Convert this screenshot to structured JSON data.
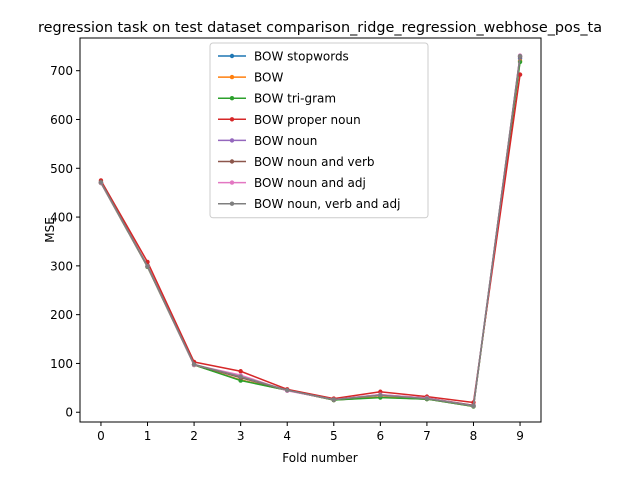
{
  "chart_data": {
    "type": "line",
    "title": "regression task on test dataset comparison_ridge_regression_webhose_pos_ta",
    "xlabel": "Fold number",
    "ylabel": "MSE",
    "x": [
      0,
      1,
      2,
      3,
      4,
      5,
      6,
      7,
      8,
      9
    ],
    "xlim": [
      -0.45,
      9.45
    ],
    "ylim": [
      -20,
      767
    ],
    "yticks": [
      0,
      100,
      200,
      300,
      400,
      500,
      600,
      700
    ],
    "legend_position": "upper center",
    "series": [
      {
        "name": "BOW stopwords",
        "color": "#1f77b4",
        "values": [
          470,
          298,
          97,
          66,
          45,
          25,
          31,
          27,
          12,
          725
        ]
      },
      {
        "name": "BOW",
        "color": "#ff7f0e",
        "values": [
          470,
          298,
          97,
          66,
          45,
          25,
          31,
          27,
          12,
          720
        ]
      },
      {
        "name": "BOW tri-gram",
        "color": "#2ca02c",
        "values": [
          470,
          298,
          97,
          65,
          45,
          25,
          30,
          27,
          12,
          718
        ]
      },
      {
        "name": "BOW proper noun",
        "color": "#d62728",
        "values": [
          475,
          308,
          103,
          84,
          47,
          28,
          42,
          32,
          20,
          692
        ]
      },
      {
        "name": "BOW noun",
        "color": "#9467bd",
        "values": [
          471,
          299,
          98,
          72,
          45,
          26,
          36,
          29,
          14,
          728
        ]
      },
      {
        "name": "BOW noun and verb",
        "color": "#8c564b",
        "values": [
          472,
          300,
          98,
          71,
          45,
          26,
          35,
          29,
          14,
          729
        ]
      },
      {
        "name": "BOW noun and adj",
        "color": "#e377c2",
        "values": [
          470,
          299,
          97,
          76,
          44,
          26,
          36,
          29,
          13,
          731
        ]
      },
      {
        "name": "BOW noun, verb and adj",
        "color": "#7f7f7f",
        "values": [
          471,
          299,
          98,
          73,
          45,
          26,
          35,
          28,
          13,
          730
        ]
      }
    ]
  }
}
